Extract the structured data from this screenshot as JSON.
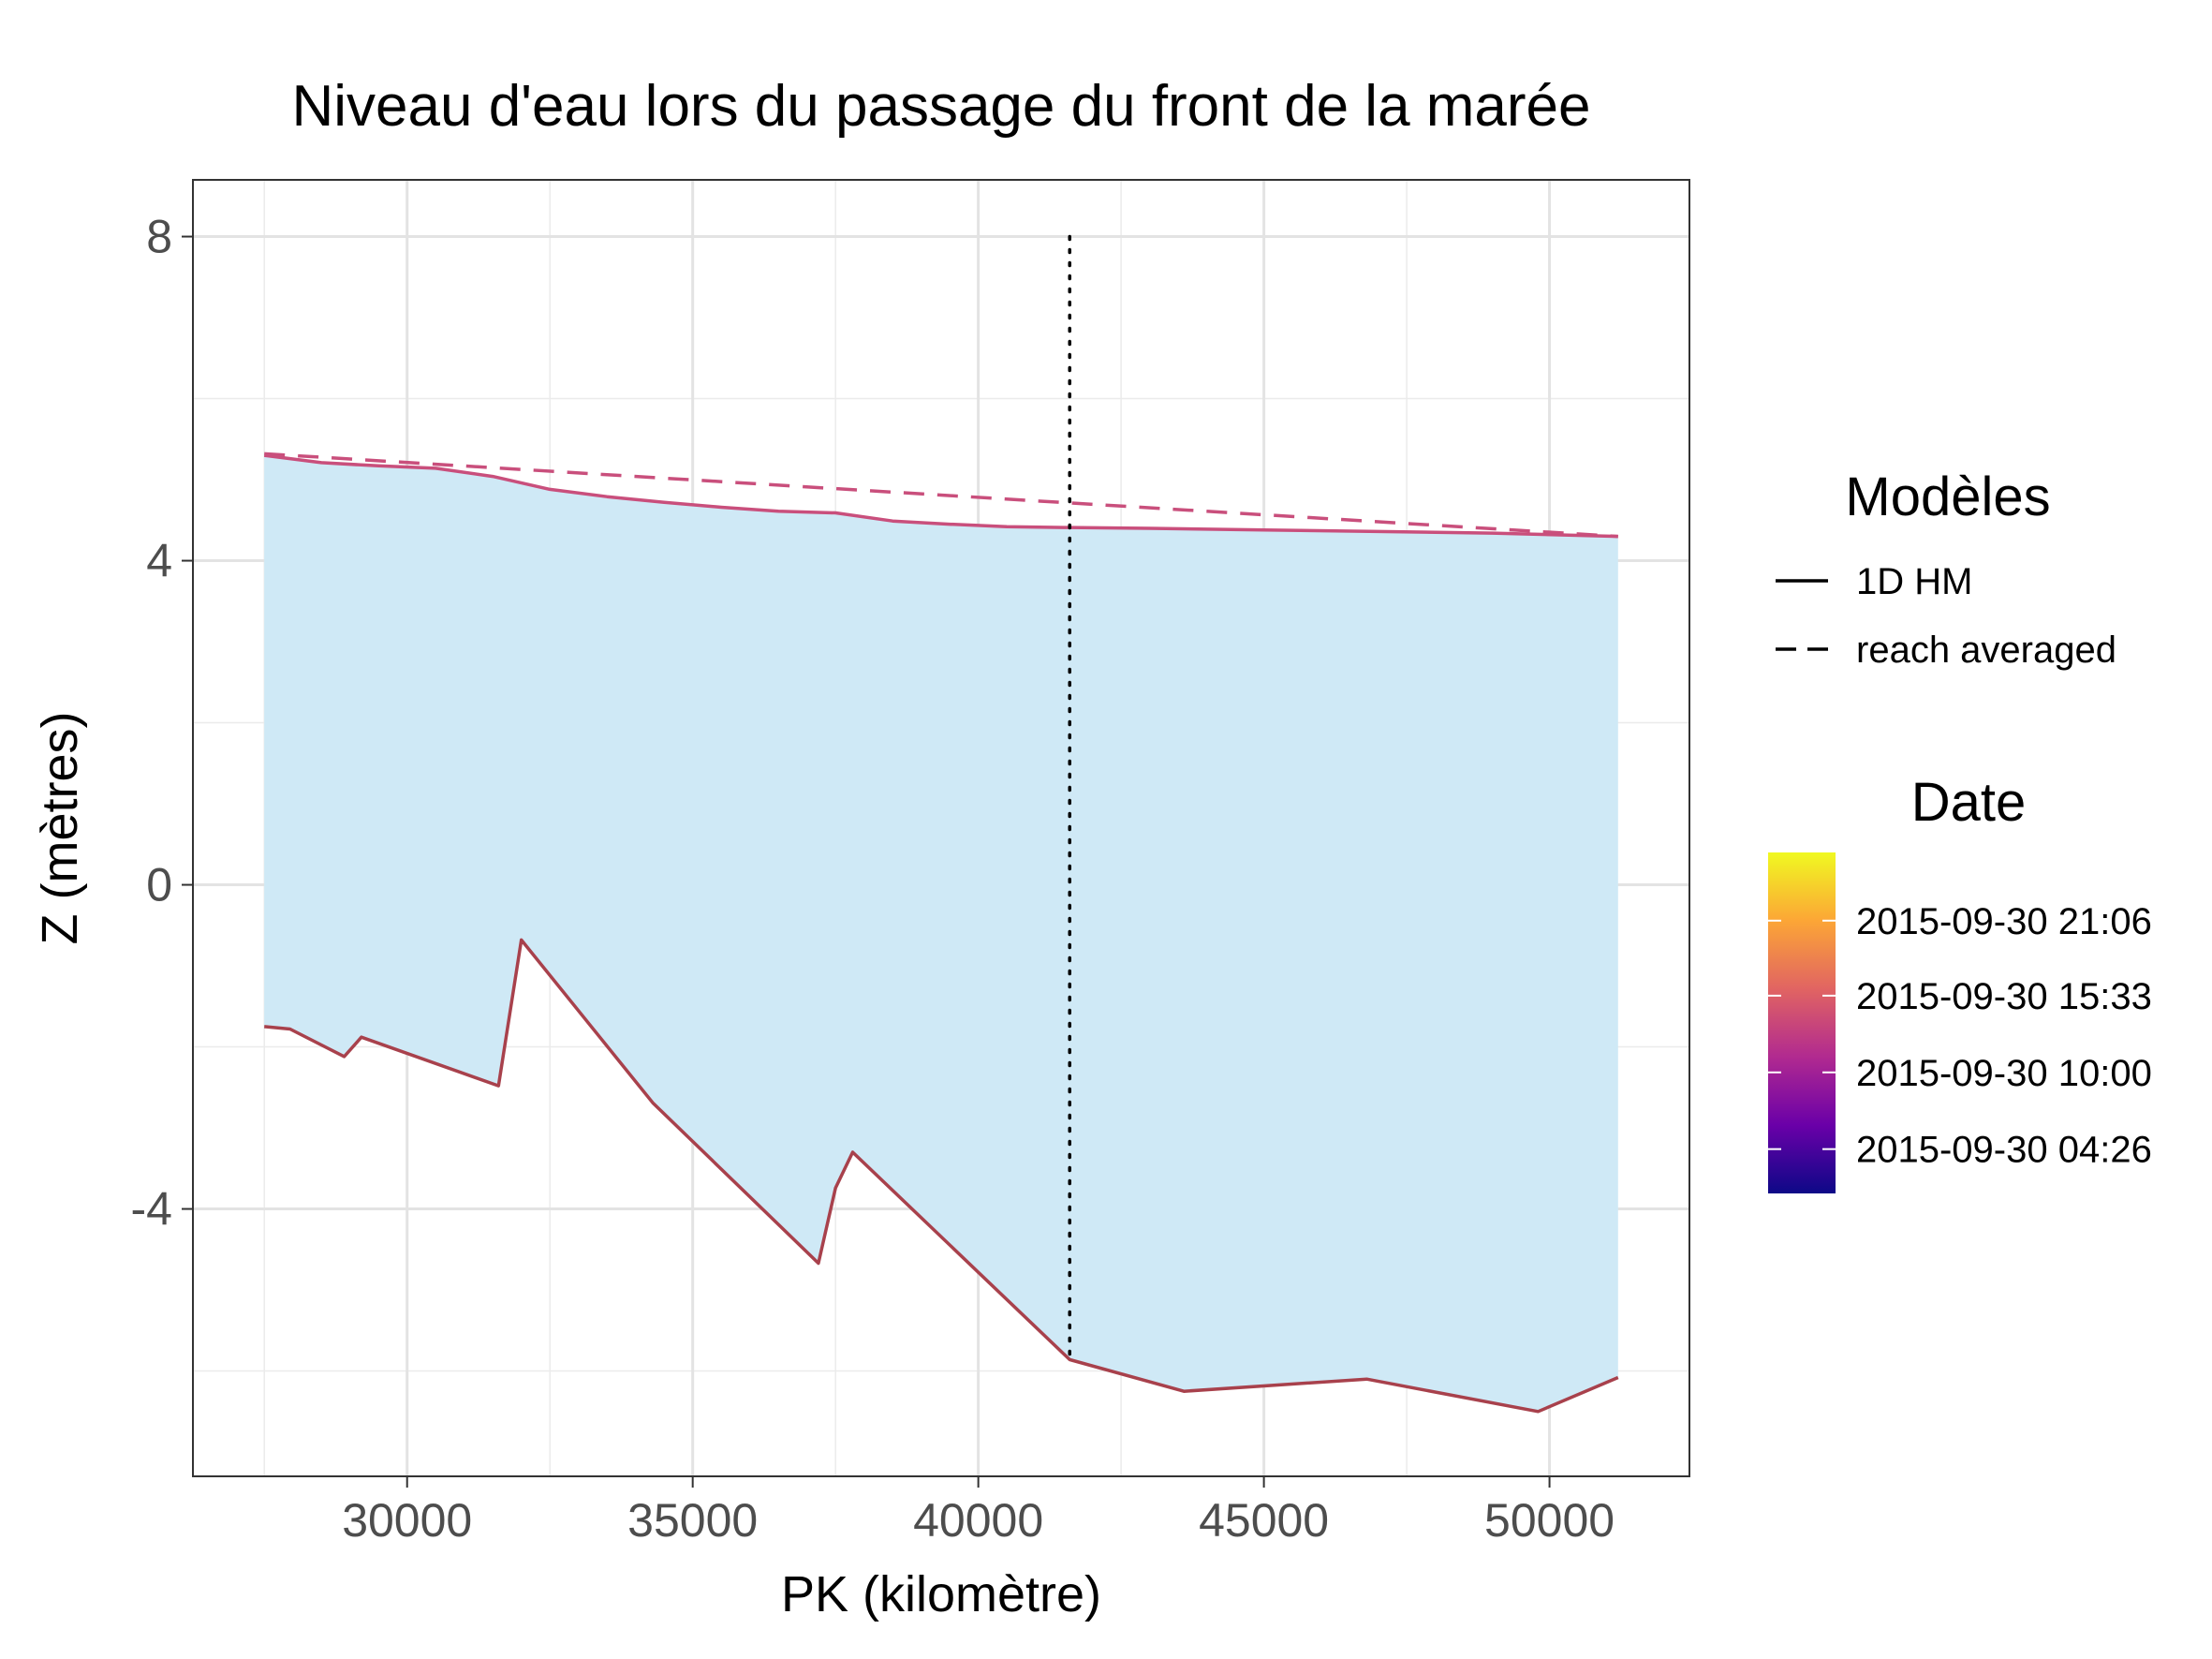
{
  "chart_data": {
    "type": "line",
    "title": "Niveau d'eau lors du passage du front de la marée",
    "xlabel": "PK (kilomètre)",
    "ylabel": "Z (mètres)",
    "xlim": [
      26250,
      52450
    ],
    "ylim": [
      -7.3,
      8.7
    ],
    "x_ticks": [
      30000,
      35000,
      40000,
      45000,
      50000
    ],
    "y_ticks": [
      -4,
      0,
      4,
      8
    ],
    "grid": true,
    "legend_position": "right",
    "vertical_marker": {
      "x": 41600,
      "y_range": [
        -5.8,
        8.0
      ],
      "style": "dotted"
    },
    "series": [
      {
        "name": "1D HM",
        "style": "solid",
        "color": "#c94f7c",
        "x": [
          27500,
          28500,
          29500,
          30500,
          31500,
          32500,
          33500,
          34500,
          35500,
          36500,
          37500,
          38500,
          39500,
          40500,
          41500,
          43000,
          45000,
          47000,
          49000,
          51200
        ],
        "y": [
          5.3,
          5.21,
          5.17,
          5.14,
          5.04,
          4.88,
          4.79,
          4.72,
          4.66,
          4.61,
          4.59,
          4.49,
          4.45,
          4.42,
          4.41,
          4.4,
          4.38,
          4.36,
          4.34,
          4.3
        ]
      },
      {
        "name": "reach averaged",
        "style": "dashed",
        "color": "#c94f7c",
        "x": [
          27500,
          51200
        ],
        "y": [
          5.32,
          4.3
        ]
      },
      {
        "name": "bed",
        "style": "solid",
        "color": "#a8414c",
        "x": [
          27500,
          27950,
          28900,
          29200,
          31600,
          32000,
          34300,
          37200,
          37500,
          37800,
          41600,
          43600,
          46800,
          49800,
          51200
        ],
        "y": [
          -1.75,
          -1.78,
          -2.12,
          -1.88,
          -2.48,
          -0.68,
          -2.69,
          -4.67,
          -3.74,
          -3.3,
          -5.86,
          -6.25,
          -6.1,
          -6.5,
          -6.08
        ]
      }
    ],
    "area": {
      "fill": "#cfe9f6",
      "upper_series": "1D HM",
      "lower_series": "bed"
    },
    "legend_lines": {
      "title": "Modèles",
      "entries": [
        {
          "label": "1D HM",
          "style": "solid"
        },
        {
          "label": "reach averaged",
          "style": "dashed"
        }
      ]
    },
    "legend_color": {
      "title": "Date",
      "labels": [
        "2015-09-30 21:06",
        "2015-09-30 15:33",
        "2015-09-30 10:00",
        "2015-09-30 04:26"
      ],
      "label_positions": [
        0.8,
        0.58,
        0.355,
        0.13
      ],
      "gradient": [
        "#0d0887",
        "#6a00a8",
        "#b12a90",
        "#e16462",
        "#fca636",
        "#f0f921"
      ]
    }
  }
}
